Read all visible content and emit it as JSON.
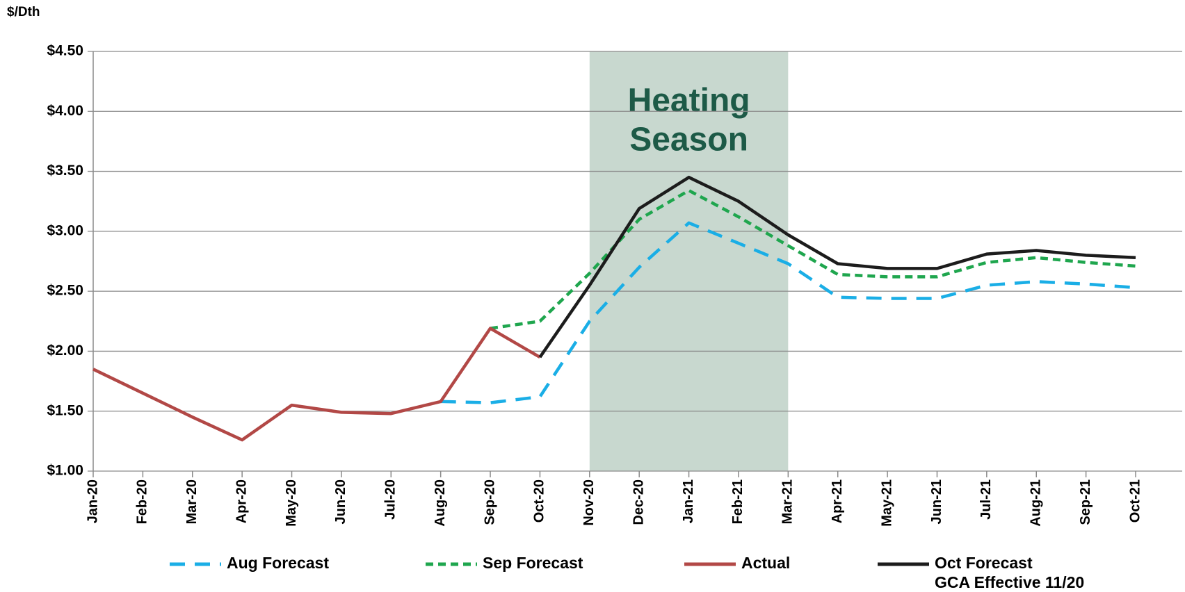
{
  "chart_data": {
    "type": "line",
    "y_label": "$/Dth",
    "categories": [
      "Jan-20",
      "Feb-20",
      "Mar-20",
      "Apr-20",
      "May-20",
      "Jun-20",
      "Jul-20",
      "Aug-20",
      "Sep-20",
      "Oct-20",
      "Nov-20",
      "Dec-20",
      "Jan-21",
      "Feb-21",
      "Mar-21",
      "Apr-21",
      "May-21",
      "Jun-21",
      "Jul-21",
      "Aug-21",
      "Sep-21",
      "Oct-21"
    ],
    "series": [
      {
        "name": "Aug Forecast",
        "color": "#1aaee6",
        "dash": "long",
        "values": [
          null,
          null,
          null,
          null,
          null,
          null,
          null,
          1.58,
          1.57,
          1.62,
          2.25,
          2.7,
          3.07,
          2.9,
          2.73,
          2.45,
          2.44,
          2.44,
          2.55,
          2.58,
          2.56,
          2.53
        ]
      },
      {
        "name": "Sep Forecast",
        "color": "#1fa64e",
        "dash": "short",
        "values": [
          null,
          null,
          null,
          null,
          null,
          null,
          null,
          null,
          2.19,
          2.25,
          2.65,
          3.1,
          3.34,
          3.12,
          2.88,
          2.64,
          2.62,
          2.62,
          2.74,
          2.78,
          2.74,
          2.71
        ]
      },
      {
        "name": "Actual",
        "color": "#b24846",
        "dash": "solid",
        "values": [
          1.85,
          1.65,
          1.45,
          1.26,
          1.55,
          1.49,
          1.48,
          1.58,
          2.19,
          1.95,
          null,
          null,
          null,
          null,
          null,
          null,
          null,
          null,
          null,
          null,
          null,
          null
        ]
      },
      {
        "name": "Oct Forecast",
        "subname": "GCA Effective 11/20",
        "color": "#1c1c1c",
        "dash": "solid",
        "values": [
          null,
          null,
          null,
          null,
          null,
          null,
          null,
          null,
          null,
          1.95,
          2.55,
          3.19,
          3.45,
          3.25,
          2.97,
          2.73,
          2.69,
          2.69,
          2.81,
          2.84,
          2.8,
          2.78
        ]
      }
    ],
    "ylim": [
      1.0,
      4.5
    ],
    "yticks": [
      {
        "value": 1.0,
        "label": "$1.00"
      },
      {
        "value": 1.5,
        "label": "$1.50"
      },
      {
        "value": 2.0,
        "label": "$2.00"
      },
      {
        "value": 2.5,
        "label": "$2.50"
      },
      {
        "value": 3.0,
        "label": "$3.00"
      },
      {
        "value": 3.5,
        "label": "$3.50"
      },
      {
        "value": 4.0,
        "label": "$4.00"
      },
      {
        "value": 4.5,
        "label": "$4.50"
      }
    ],
    "grid": true,
    "shaded_region": {
      "from": "Nov-20",
      "to": "Mar-21",
      "color": "#c8d8cf",
      "text_lines": [
        "Heating",
        "Season"
      ],
      "text_color": "#1d5a47"
    },
    "legend": "bottom"
  }
}
